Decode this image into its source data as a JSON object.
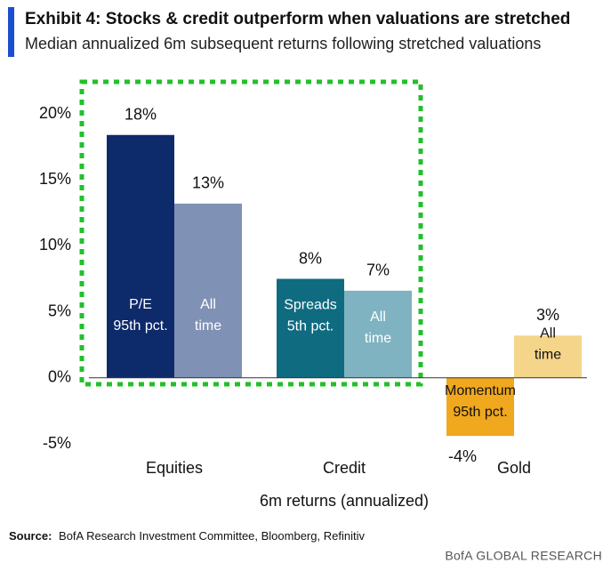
{
  "chart_data": {
    "type": "bar",
    "title": "Exhibit 4: Stocks & credit outperform when valuations are stretched",
    "subtitle": "Median annualized 6m subsequent returns following stretched valuations",
    "x_label": "6m returns (annualized)",
    "ylim": [
      -5,
      20
    ],
    "yticks": [
      {
        "value": -5,
        "label": "-5%"
      },
      {
        "value": 0,
        "label": "0%"
      },
      {
        "value": 5,
        "label": "5%"
      },
      {
        "value": 10,
        "label": "10%"
      },
      {
        "value": 15,
        "label": "15%"
      },
      {
        "value": 20,
        "label": "20%"
      }
    ],
    "groups": [
      {
        "category": "Equities",
        "bars": [
          {
            "label_lines": [
              "P/E",
              "95th pct."
            ],
            "value": 18.4,
            "value_label": "18%",
            "color": "#0d2a6b",
            "label_color": "#ffffff"
          },
          {
            "label_lines": [
              "All",
              "time"
            ],
            "value": 13.2,
            "value_label": "13%",
            "color": "#7f91b5",
            "label_color": "#ffffff"
          }
        ]
      },
      {
        "category": "Credit",
        "bars": [
          {
            "label_lines": [
              "Spreads",
              "5th pct."
            ],
            "value": 7.5,
            "value_label": "8%",
            "color": "#0f6b80",
            "label_color": "#ffffff"
          },
          {
            "label_lines": [
              "All",
              "time"
            ],
            "value": 6.6,
            "value_label": "7%",
            "color": "#7fb3c1",
            "label_color": "#ffffff"
          }
        ]
      },
      {
        "category": "Gold",
        "bars": [
          {
            "label_lines": [
              "Momentum",
              "95th pct."
            ],
            "value": -4.4,
            "value_label": "-4%",
            "color": "#f0a81e",
            "label_color": "#111111"
          },
          {
            "label_lines": [
              "All",
              "time"
            ],
            "value": 3.2,
            "value_label": "3%",
            "color": "#f5d58a",
            "label_color": "#111111"
          }
        ]
      }
    ],
    "source_label": "Source:",
    "source_text": "BofA Research Investment Committee, Bloomberg, Refinitiv",
    "brand": "BofA GLOBAL RESEARCH"
  }
}
